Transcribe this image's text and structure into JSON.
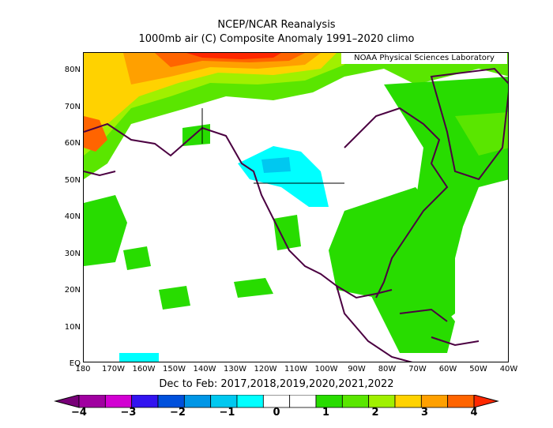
{
  "title_line1": "NCEP/NCAR Reanalysis",
  "title_line2": "1000mb air (C) Composite Anomaly 1991–2020 climo",
  "credit": "NOAA Physical Sciences Laboratory",
  "period": "Dec to Feb: 2017,2018,2019,2020,2021,2022",
  "lat_labels": [
    "80N",
    "70N",
    "60N",
    "50N",
    "40N",
    "30N",
    "20N",
    "10N",
    "EQ"
  ],
  "lon_labels": [
    "180",
    "170W",
    "160W",
    "150W",
    "140W",
    "130W",
    "120W",
    "110W",
    "100W",
    "90W",
    "80W",
    "70W",
    "60W",
    "50W",
    "40W"
  ],
  "colorbar": {
    "labels": [
      "−4",
      "−3",
      "−2",
      "−1",
      "0",
      "1",
      "2",
      "3",
      "4"
    ],
    "colors": [
      "#780078",
      "#a000a0",
      "#d200d2",
      "#3214f0",
      "#0050dc",
      "#0096e6",
      "#00c8f0",
      "#00ffff",
      "#ffffff",
      "#ffffff",
      "#28dc00",
      "#5ae600",
      "#a0f000",
      "#ffd200",
      "#ffa000",
      "#ff6400",
      "#ff2800"
    ]
  },
  "map_colors": {
    "land_outline": "#4b0041",
    "warm1": "#28dc00",
    "warm2": "#5ae600",
    "warm3": "#ffd200",
    "warm4": "#ffa000",
    "warm5": "#ff6400",
    "warm6": "#ff2800",
    "cool1": "#00ffff",
    "cool2": "#00c8f0"
  }
}
